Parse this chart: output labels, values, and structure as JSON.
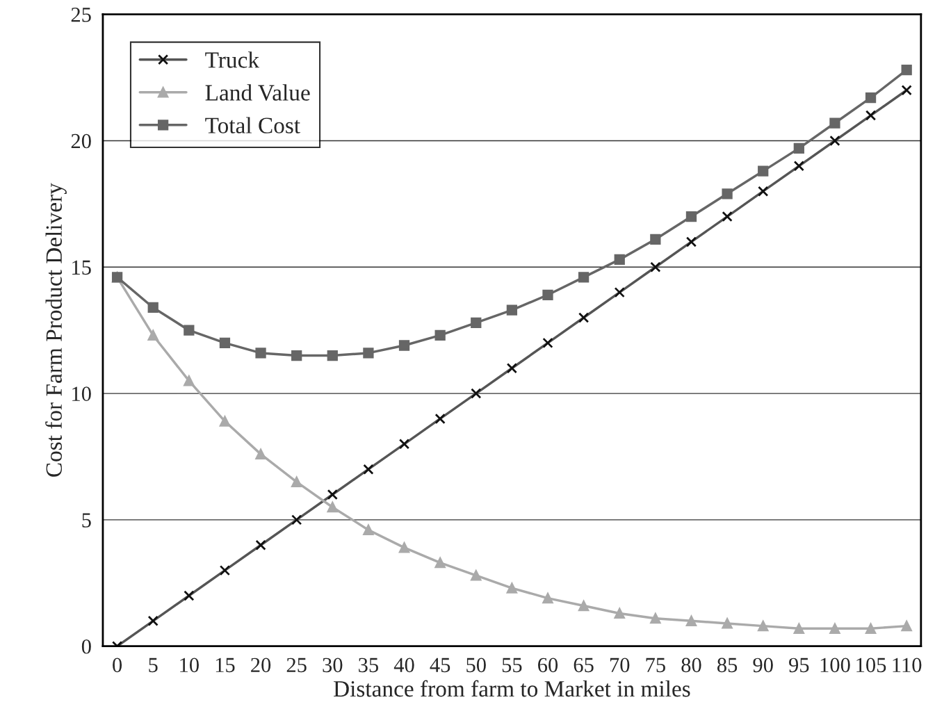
{
  "chart_data": {
    "type": "line",
    "xlabel": "Distance from farm to Market in miles",
    "ylabel": "Cost for Farm Product Delivery",
    "x": [
      0,
      5,
      10,
      15,
      20,
      25,
      30,
      35,
      40,
      45,
      50,
      55,
      60,
      65,
      70,
      75,
      80,
      85,
      90,
      95,
      100,
      105,
      110
    ],
    "series": [
      {
        "name": "Truck",
        "color": "#555555",
        "marker": "cross",
        "values": [
          0,
          1,
          2,
          3,
          4,
          5,
          6,
          7,
          8,
          9,
          10,
          11,
          12,
          13,
          14,
          15,
          16,
          17,
          18,
          19,
          20,
          21,
          22
        ]
      },
      {
        "name": "Land Value",
        "color": "#aaaaaa",
        "marker": "triangle",
        "values": [
          14.6,
          12.3,
          10.5,
          8.9,
          7.6,
          6.5,
          5.5,
          4.6,
          3.9,
          3.3,
          2.8,
          2.3,
          1.9,
          1.6,
          1.3,
          1.1,
          1.0,
          0.9,
          0.8,
          0.7,
          0.7,
          0.7,
          0.8
        ]
      },
      {
        "name": "Total Cost",
        "color": "#666666",
        "marker": "square",
        "values": [
          14.6,
          13.4,
          12.5,
          12.0,
          11.6,
          11.5,
          11.5,
          11.6,
          11.9,
          12.3,
          12.8,
          13.3,
          13.9,
          14.6,
          15.3,
          16.1,
          17.0,
          17.9,
          18.8,
          19.7,
          20.7,
          21.7,
          22.8
        ]
      }
    ],
    "xlim": [
      -2,
      112
    ],
    "ylim": [
      0,
      25
    ],
    "xticks": [
      0,
      5,
      10,
      15,
      20,
      25,
      30,
      35,
      40,
      45,
      50,
      55,
      60,
      65,
      70,
      75,
      80,
      85,
      90,
      95,
      100,
      105,
      110
    ],
    "yticks": [
      0,
      5,
      10,
      15,
      20,
      25
    ],
    "grid": "y",
    "legend": "top left",
    "line_style": "solid"
  }
}
